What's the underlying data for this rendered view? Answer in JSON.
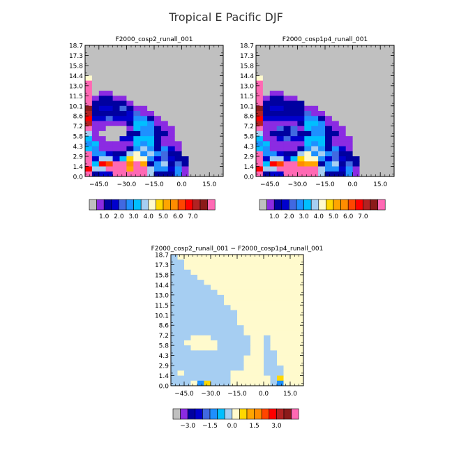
{
  "figure": {
    "title": "Tropical E Pacific DJF"
  },
  "chart_data": [
    {
      "type": "heatmap",
      "title": "F2000_cosp2_runall_001",
      "x_ticks": [
        -45.0,
        -30.0,
        -15.0,
        0.0,
        15.0
      ],
      "x_tick_labels": [
        "−45.0",
        "−30.0",
        "−15.0",
        "0.0",
        "15.0"
      ],
      "x_range": [
        -52.5,
        22.5
      ],
      "y_tick_labels": [
        "0.0",
        "1.4",
        "2.9",
        "4.3",
        "5.8",
        "7.2",
        "8.6",
        "10.1",
        "11.5",
        "13.0",
        "14.4",
        "15.8",
        "17.3",
        "18.7"
      ],
      "y_rows": 26,
      "grid": false,
      "colorbar": {
        "colors": [
          "#c0c0c0",
          "#8b2be2",
          "#0000a0",
          "#0000cd",
          "#4169e1",
          "#1e90ff",
          "#00bfff",
          "#a6cef2",
          "#fffacd",
          "#ffd700",
          "#ffa500",
          "#ff8c00",
          "#ff4500",
          "#ff0000",
          "#b22222",
          "#8b1a1a",
          "#ff69b4"
        ],
        "labels": [
          "1.0",
          "2.0",
          "3.0",
          "4.0",
          "5.0",
          "6.0",
          "7.0"
        ],
        "label_after_box": [
          2,
          4,
          6,
          8,
          10,
          12,
          14
        ]
      },
      "note_values_are_color_class_indices": true,
      "rows": [
        "0 0 0 0 0 0 0 0 0 0 0 0 0 0 0 0 0 0 0 0",
        "0 0 0 0 0 0 0 0 0 0 0 0 0 0 0 0 0 0 0 0",
        "0 0 0 0 0 0 0 0 0 0 0 0 0 0 0 0 0 0 0 0",
        "0 0 0 0 0 0 0 0 0 0 0 0 0 0 0 0 0 0 0 0",
        "0 0 0 0 0 0 0 0 0 0 0 0 0 0 0 0 0 0 0 0",
        "0 0 0 0 0 0 0 0 0 0 0 0 0 0 0 0 0 0 0 0",
        "8 0 0 0 0 0 0 0 0 0 0 0 0 0 0 0 0 0 0 0",
        "16 0 0 0 0 0 0 0 0 0 0 0 0 0 0 0 0 0 0 0",
        "16 0 0 0 0 0 0 0 0 0 0 0 0 0 0 0 0 0 0 0",
        "16 0 1 1 0 0 0 0 0 0 0 0 0 0 0 0 0 0 0 0",
        "16 1 2 2 1 1 0 0 0 0 0 0 0 0 0 0 0 0 0 0",
        "16 2 2 2 2 2 1 0 0 0 0 0 0 0 0 0 0 0 0 0",
        "15 2 3 3 2 4 2 1 1 0 0 0 0 0 0 0 0 0 0 0",
        "14 2 2 2 2 2 3 4 1 1 0 0 0 0 0 0 0 0 0 0",
        "13 3 3 4 3 3 3 5 5 2 1 0 0 0 0 0 0 0 0 0",
        "14 1 1 1 1 1 2 6 6 5 1 1 0 0 0 0 0 0 0 0",
        "16 1 1 0 0 0 1 6 5 5 2 1 1 0 0 0 0 0 0 0",
        "7 1 0 0 0 0 2 2 5 5 2 2 1 0 0 0 0 0 0 0",
        "6 1 1 0 0 3 3 6 6 6 2 1 1 0 0 0 0 0 0 0",
        "5 6 1 1 1 1 1 6 5 6 2 1 1 1 0 0 0 0 0 0",
        "6 5 1 1 1 1 2 5 7 5 2 5 3 1 0 0 0 0 0 0",
        "16 5 5 3 2 2 7 8 5 7 5 4 2 2 0 0 0 0 0 0",
        "16 3 7 7 3 6 9 8 8 5 3 4 3 2 2 0 0 0 0 0",
        "16 6 13 12 16 16 11 16 10 2 5 7 2 4 2 0 0 0 0 0",
        "13 7 7 16 16 16 10 16 16 7 5 5 3 5 1 0 0 0 0 0",
        "16 2 3 3 16 16 16 16 16 7 2 2 2 5 1 0 0 0 0 0"
      ]
    },
    {
      "type": "heatmap",
      "title": "F2000_cosp1p4_runall_001",
      "x_ticks": [
        -45.0,
        -30.0,
        -15.0,
        0.0,
        15.0
      ],
      "x_tick_labels": [
        "−45.0",
        "−30.0",
        "−15.0",
        "0.0",
        "15.0"
      ],
      "x_range": [
        -52.5,
        22.5
      ],
      "y_tick_labels": [
        "0.0",
        "1.4",
        "2.9",
        "4.3",
        "5.8",
        "7.2",
        "8.6",
        "10.1",
        "11.5",
        "13.0",
        "14.4",
        "15.8",
        "17.3",
        "18.7"
      ],
      "y_rows": 26,
      "grid": false,
      "colorbar": {
        "colors": [
          "#c0c0c0",
          "#8b2be2",
          "#0000a0",
          "#0000cd",
          "#4169e1",
          "#1e90ff",
          "#00bfff",
          "#a6cef2",
          "#fffacd",
          "#ffd700",
          "#ffa500",
          "#ff8c00",
          "#ff4500",
          "#ff0000",
          "#b22222",
          "#8b1a1a",
          "#ff69b4"
        ],
        "labels": [
          "1.0",
          "2.0",
          "3.0",
          "4.0",
          "5.0",
          "6.0",
          "7.0"
        ],
        "label_after_box": [
          2,
          4,
          6,
          8,
          10,
          12,
          14
        ]
      },
      "note_values_are_color_class_indices": true,
      "rows": [
        "0 0 0 0 0 0 0 0 0 0 0 0 0 0 0 0 0 0 0 0",
        "0 0 0 0 0 0 0 0 0 0 0 0 0 0 0 0 0 0 0 0",
        "0 0 0 0 0 0 0 0 0 0 0 0 0 0 0 0 0 0 0 0",
        "0 0 0 0 0 0 0 0 0 0 0 0 0 0 0 0 0 0 0 0",
        "0 0 0 0 0 0 0 0 0 0 0 0 0 0 0 0 0 0 0 0",
        "0 0 0 0 0 0 0 0 0 0 0 0 0 0 0 0 0 0 0 0",
        "8 0 0 0 0 0 0 0 0 0 0 0 0 0 0 0 0 0 0 0",
        "16 0 0 0 0 0 0 0 0 0 0 0 0 0 0 0 0 0 0 0",
        "16 0 0 0 0 0 0 0 0 0 0 0 0 0 0 0 0 0 0 0",
        "16 0 1 1 0 0 0 0 0 0 0 0 0 0 0 0 0 0 0 0",
        "16 1 2 2 1 1 0 0 0 0 0 0 0 0 0 0 0 0 0 0",
        "16 2 2 2 2 2 2 0 0 0 0 0 0 0 0 0 0 0 0 0",
        "15 2 3 3 2 2 2 1 1 0 0 0 0 0 0 0 0 0 0 0",
        "14 2 2 2 2 2 2 4 1 1 0 0 0 0 0 0 0 0 0 0",
        "13 3 3 3 3 3 3 5 5 2 1 0 0 0 0 0 0 0 0 0",
        "14 1 1 1 1 1 2 6 6 5 1 1 0 0 0 0 0 0 0 0",
        "16 1 1 4 2 4 1 6 5 5 2 1 1 0 0 0 0 0 0 0",
        "7 1 2 2 2 4 2 2 5 5 2 2 1 0 0 0 0 0 0 0",
        "6 1 1 3 4 3 3 6 6 6 2 1 1 1 0 0 0 0 0 0",
        "5 6 1 1 1 1 1 6 5 6 2 1 1 1 0 0 0 0 0 0",
        "6 5 1 1 1 1 2 5 7 5 2 5 3 1 0 0 0 0 0 0",
        "16 5 5 3 2 2 7 8 5 7 5 4 2 2 0 0 0 0 0 0",
        "16 3 7 7 3 6 9 8 8 5 3 4 3 2 2 0 0 0 0 0",
        "16 6 13 12 16 16 11 10 10 2 5 7 2 4 2 0 0 0 0 0",
        "13 7 7 16 16 16 16 16 16 7 5 5 3 5 1 0 0 0 0 0",
        "16 2 3 3 16 16 16 16 16 7 2 2 2 5 1 0 0 0 0 0"
      ]
    },
    {
      "type": "heatmap",
      "title": "F2000_cosp2_runall_001 − F2000_cosp1p4_runall_001",
      "x_ticks": [
        -45.0,
        -30.0,
        -15.0,
        0.0,
        15.0
      ],
      "x_tick_labels": [
        "−45.0",
        "−30.0",
        "−15.0",
        "0.0",
        "15.0"
      ],
      "x_range": [
        -52.5,
        22.5
      ],
      "y_tick_labels": [
        "0.0",
        "1.4",
        "2.9",
        "4.3",
        "5.8",
        "7.2",
        "8.6",
        "10.1",
        "11.5",
        "13.0",
        "14.4",
        "15.8",
        "17.3",
        "18.7"
      ],
      "y_rows": 26,
      "grid": false,
      "colorbar": {
        "colors": [
          "#c0c0c0",
          "#8b2be2",
          "#0000a0",
          "#0000cd",
          "#4169e1",
          "#1e90ff",
          "#00bfff",
          "#a6cef2",
          "#fffacd",
          "#ffd700",
          "#ffa500",
          "#ff8c00",
          "#ff4500",
          "#ff0000",
          "#b22222",
          "#8b1a1a",
          "#ff69b4"
        ],
        "labels": [
          "−3.0",
          "−1.5",
          "0.0",
          "1.5",
          "3.0"
        ],
        "label_after_box": [
          2,
          5,
          8,
          11,
          14
        ]
      },
      "note_values_are_color_class_indices": true,
      "rows": [
        "7 8 8 8 8 8 8 8 8 8 8 8 8 8 8 8 8 8 8 8",
        "7 7 8 8 8 8 8 8 8 8 8 8 8 8 8 8 8 8 8 8",
        "7 7 8 8 8 8 8 8 8 8 8 8 8 8 8 8 8 8 8 8",
        "7 7 7 8 8 8 8 8 8 8 8 8 8 8 8 8 8 8 8 8",
        "7 7 7 7 8 8 8 8 8 8 8 8 8 8 8 8 8 8 8 8",
        "7 7 7 7 7 8 8 8 8 8 8 8 8 8 8 8 8 8 8 8",
        "7 7 7 7 7 7 8 8 8 8 8 8 8 8 8 8 8 8 8 8",
        "7 7 7 7 7 7 7 8 8 8 8 8 8 8 8 8 8 8 8 8",
        "7 7 7 7 7 7 7 7 8 8 8 8 8 8 8 8 8 8 8 8",
        "7 7 7 7 7 7 7 7 8 8 8 8 8 8 8 8 8 8 8 8",
        "7 7 7 7 7 7 7 7 7 8 8 8 8 8 8 8 8 8 8 8",
        "7 7 7 7 7 7 7 7 7 7 8 8 8 8 8 8 8 8 8 8",
        "7 7 7 7 7 7 7 7 7 7 8 8 8 8 8 8 8 8 8 8",
        "7 7 7 7 7 7 7 7 7 7 8 8 8 8 8 8 8 8 8 8",
        "7 7 7 7 7 7 7 7 7 7 7 8 8 8 8 8 8 8 8 8",
        "7 7 7 7 7 7 7 7 7 7 7 8 8 8 8 8 8 8 8 8",
        "7 7 7 8 8 8 7 7 7 7 7 7 8 8 7 8 8 8 8 8",
        "7 7 8 8 8 8 8 7 7 7 7 7 8 8 7 8 8 8 8 8",
        "7 7 7 8 8 8 8 7 7 7 7 7 8 8 7 8 8 8 8 8",
        "7 7 7 7 7 7 7 7 7 7 7 7 8 8 7 7 8 8 8 8",
        "7 7 7 7 7 7 7 7 7 7 7 8 8 8 7 7 8 8 8 8",
        "7 7 7 7 7 7 7 7 7 7 7 8 8 8 7 7 8 8 8 8",
        "7 7 7 7 7 7 7 7 7 7 7 8 8 8 7 7 7 8 8 8",
        "7 8 7 7 7 7 7 7 7 8 8 8 8 8 7 7 7 8 8 8",
        "7 7 7 7 7 7 7 7 7 8 8 8 8 8 8 7 9 8 8 8",
        "7 7 7 8 5 9 7 7 7 8 8 8 8 8 8 7 5 8 8 8"
      ]
    }
  ]
}
